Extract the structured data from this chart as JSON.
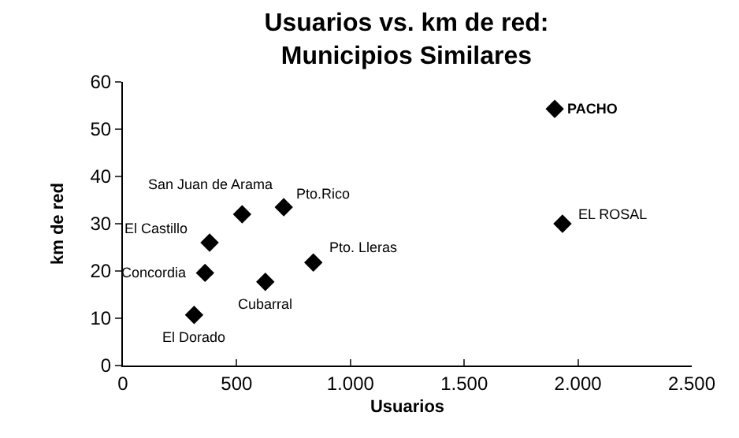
{
  "chart_data": {
    "type": "scatter",
    "title": "Usuarios vs. km de red: Municipios Similares",
    "xlabel": "Usuarios",
    "ylabel": "km de red",
    "x": [
      524,
      707,
      381,
      361,
      626,
      837,
      313,
      1898,
      1932
    ],
    "values": [
      32,
      33.5,
      26,
      19.6,
      17.7,
      21.8,
      10.7,
      54.3,
      30
    ],
    "color": "#000000",
    "marker": "diamond",
    "xlim": [
      0,
      2500
    ],
    "xticks": [
      0,
      500,
      {
        "value": 1000,
        "label": "1.000"
      },
      {
        "value": 1500,
        "label": "1.500"
      },
      {
        "value": 2000,
        "label": "2.000"
      },
      {
        "value": 2500,
        "label": "2.500"
      }
    ],
    "ylim": [
      0,
      60
    ],
    "yticks": [
      0,
      10,
      20,
      30,
      40,
      50,
      60
    ],
    "annotations": [
      {
        "text": "San Juan de Arama",
        "x": 524,
        "y": 32
      },
      {
        "text": "Pto.Rico",
        "x": 707,
        "y": 33.5
      },
      {
        "text": "El Castillo",
        "x": 381,
        "y": 26
      },
      {
        "text": "Concordia",
        "x": 361,
        "y": 19.6
      },
      {
        "text": "Cubarral",
        "x": 626,
        "y": 17.7
      },
      {
        "text": "Pto. Lleras",
        "x": 837,
        "y": 21.8
      },
      {
        "text": "El Dorado",
        "x": 313,
        "y": 10.7
      },
      {
        "text": "PACHO",
        "x": 1898,
        "y": 54.3
      },
      {
        "text": "EL ROSAL",
        "x": 1932,
        "y": 30
      }
    ]
  }
}
